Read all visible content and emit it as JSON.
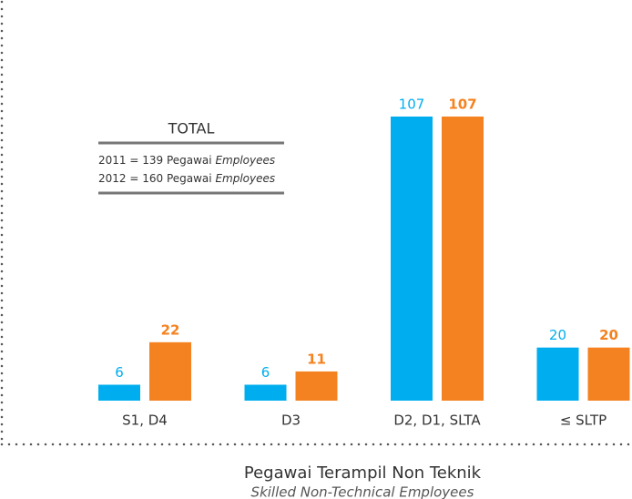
{
  "chart_data": {
    "type": "bar",
    "title": "Pegawai Terampil Non Teknik",
    "subtitle": "Skilled Non-Technical Employees",
    "categories": [
      "S1, D4",
      "D3",
      "D2, D1, SLTA",
      "≤ SLTP"
    ],
    "series": [
      {
        "color": "#00aeef",
        "values": [
          6,
          6,
          107,
          20
        ]
      },
      {
        "color": "#f58220",
        "values": [
          22,
          11,
          107,
          20
        ]
      }
    ],
    "annotation": {
      "title": "TOTAL",
      "lines": [
        {
          "text": "2011 = 139 Pegawai",
          "italic": "Employees"
        },
        {
          "text": "2012 = 160 Pegawai",
          "italic": "Employees"
        }
      ]
    }
  }
}
